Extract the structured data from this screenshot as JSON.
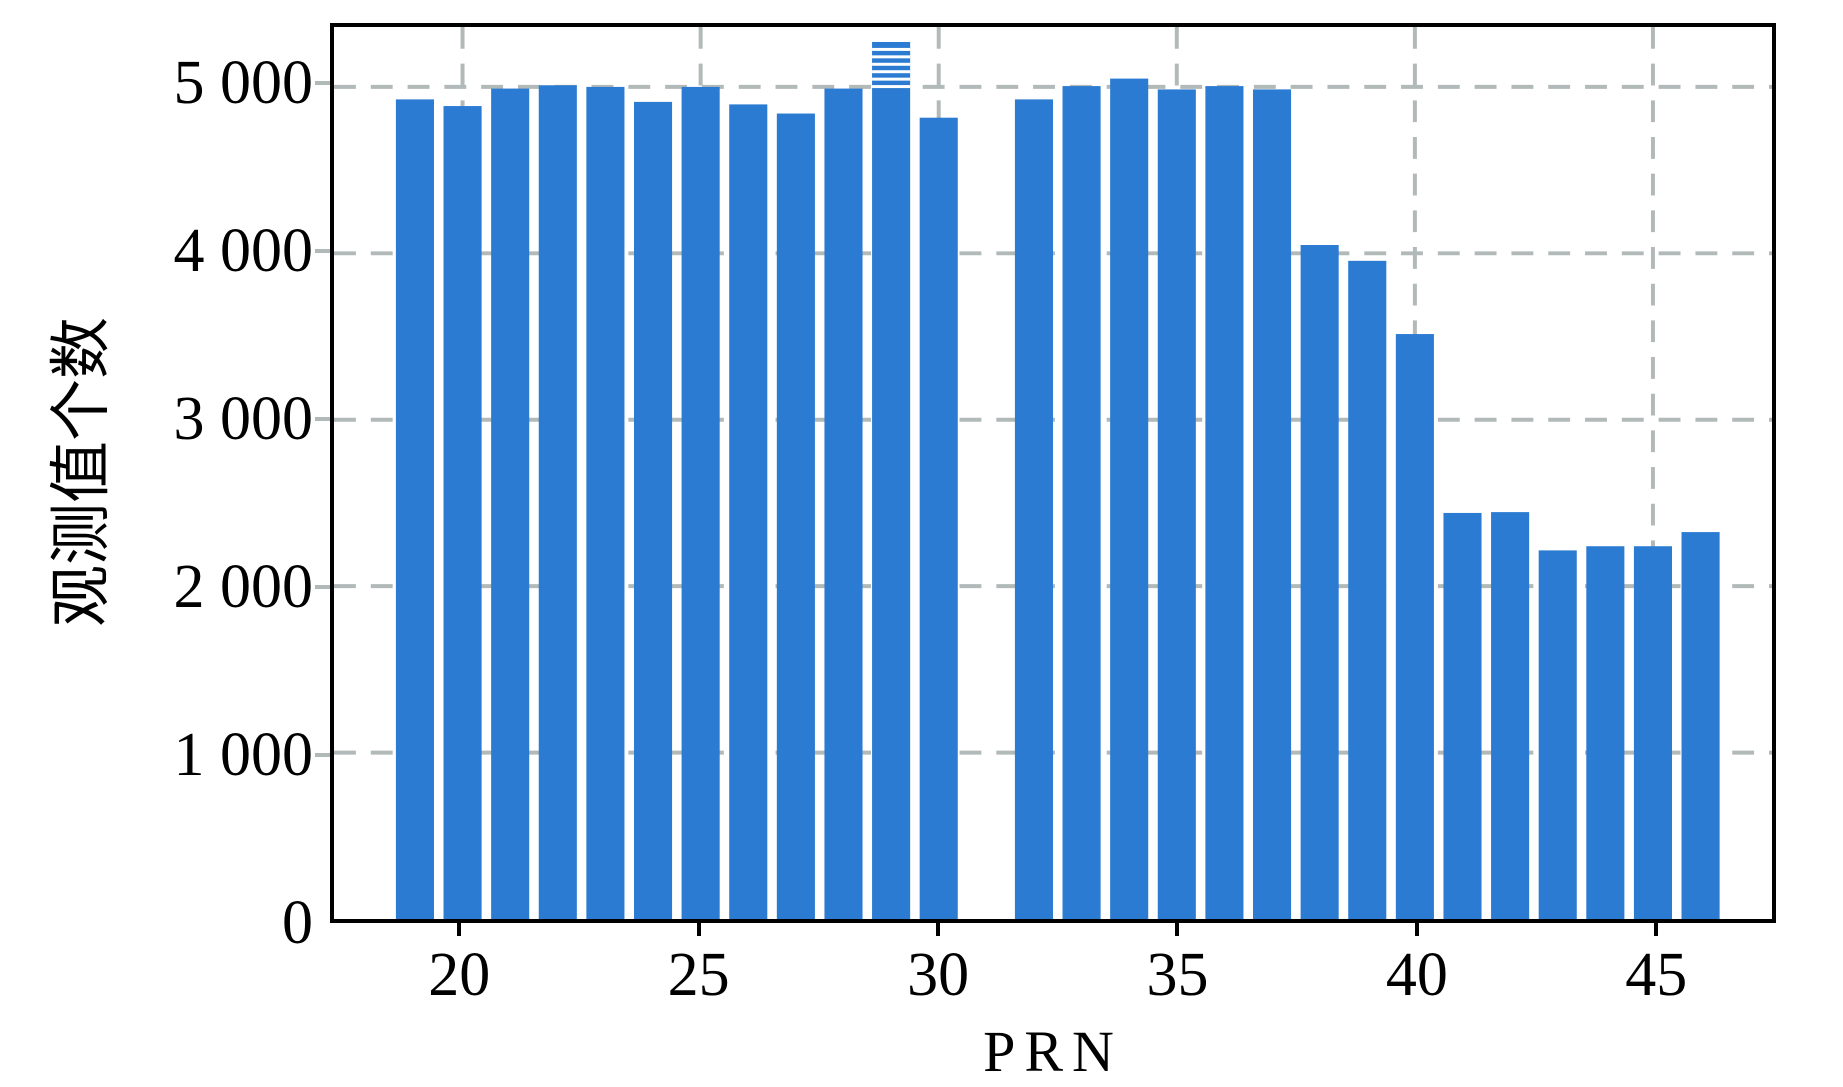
{
  "figure": {
    "background_color": "#ffffff",
    "text_color": "#000000"
  },
  "chart_data": {
    "type": "bar",
    "title": "",
    "xlabel": "PRN",
    "ylabel": "观测值个数",
    "xlim": [
      17.3,
      47.5
    ],
    "ylim": [
      0,
      5360
    ],
    "grid": true,
    "grid_style": "dashed",
    "grid_color": "#b2b9b9",
    "bar_color": "#2c7bd2",
    "bar_width_units": 0.8,
    "x_ticks": [
      20,
      25,
      30,
      35,
      40,
      45
    ],
    "x_tick_labels": [
      "20",
      "25",
      "30",
      "35",
      "40",
      "45"
    ],
    "y_ticks": [
      0,
      1000,
      2000,
      3000,
      4000,
      5000
    ],
    "y_tick_labels": [
      "0",
      "1 000",
      "2 000",
      "3 000",
      "4 000",
      "5 000"
    ],
    "bars": [
      {
        "prn": 19,
        "value": 4925
      },
      {
        "prn": 20,
        "value": 4885
      },
      {
        "prn": 21,
        "value": 4990
      },
      {
        "prn": 22,
        "value": 5010
      },
      {
        "prn": 23,
        "value": 5000
      },
      {
        "prn": 24,
        "value": 4910
      },
      {
        "prn": 25,
        "value": 5000
      },
      {
        "prn": 26,
        "value": 4895
      },
      {
        "prn": 27,
        "value": 4840
      },
      {
        "prn": 28,
        "value": 4990
      },
      {
        "prn": 29,
        "value": 5270,
        "clipped_striped_top": true
      },
      {
        "prn": 30,
        "value": 4815
      },
      {
        "prn": 32,
        "value": 4925
      },
      {
        "prn": 33,
        "value": 5005
      },
      {
        "prn": 34,
        "value": 5050
      },
      {
        "prn": 35,
        "value": 4985
      },
      {
        "prn": 36,
        "value": 5005
      },
      {
        "prn": 37,
        "value": 4985
      },
      {
        "prn": 38,
        "value": 4050
      },
      {
        "prn": 39,
        "value": 3955
      },
      {
        "prn": 40,
        "value": 3515
      },
      {
        "prn": 41,
        "value": 2440
      },
      {
        "prn": 42,
        "value": 2445
      },
      {
        "prn": 43,
        "value": 2215
      },
      {
        "prn": 44,
        "value": 2240
      },
      {
        "prn": 45,
        "value": 2240
      },
      {
        "prn": 46,
        "value": 2325
      }
    ]
  }
}
